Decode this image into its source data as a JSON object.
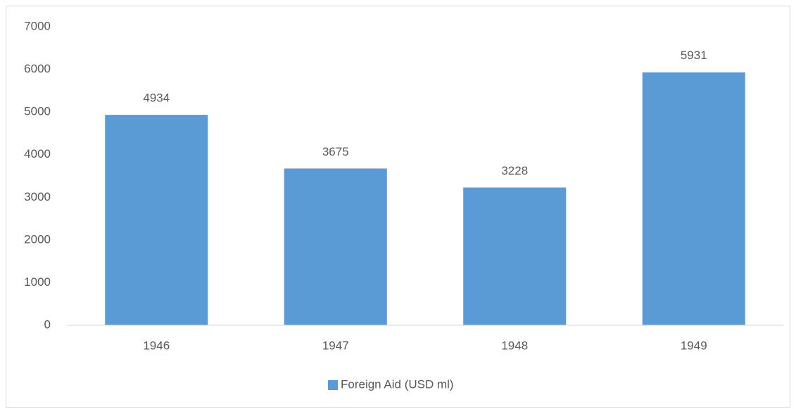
{
  "chart_data": {
    "type": "bar",
    "categories": [
      "1946",
      "1947",
      "1948",
      "1949"
    ],
    "series": [
      {
        "name": "Foreign Aid (USD ml)",
        "color": "#5b9bd5",
        "values": [
          4934,
          3675,
          3228,
          5931
        ]
      }
    ],
    "ylim": [
      0,
      7000
    ],
    "yticks": [
      0,
      1000,
      2000,
      3000,
      4000,
      5000,
      6000,
      7000
    ],
    "grid": false,
    "legend": "bottom",
    "data_labels": true
  }
}
